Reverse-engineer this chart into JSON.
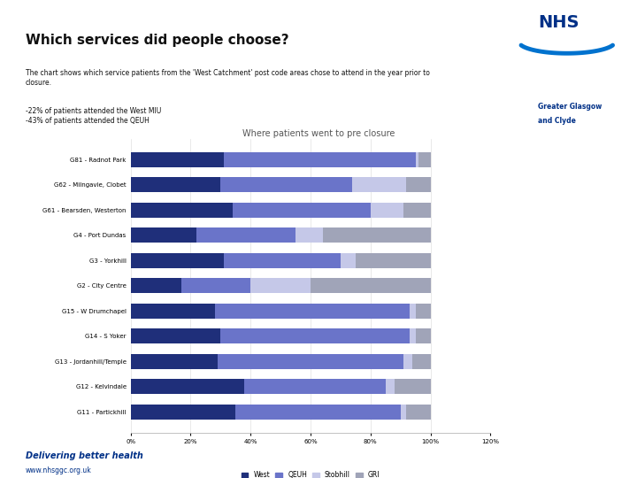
{
  "title": "Which services did people choose?",
  "subtitle": "The chart shows which service patients from the 'West Catchment' post code areas chose to attend in the year prior to\nclosure.",
  "bullets": [
    "-22% of patients attended the West MIU",
    "-43% of patients attended the QEUH"
  ],
  "chart_title": "Where patients went to pre closure",
  "categories": [
    "G81 - Radnot Park",
    "G62 - Milngavie, Clobet",
    "G61 - Bearsden, Westerton",
    "G4 - Port Dundas",
    "G3 - Yorkhill",
    "G2 - City Centre",
    "G15 - W Drumchapel",
    "G14 - S Yoker",
    "G13 - Jordanhill/Temple",
    "G12 - Kelvindale",
    "G11 - Partickhill"
  ],
  "series": {
    "West": [
      31,
      30,
      34,
      22,
      31,
      17,
      28,
      30,
      29,
      38,
      35
    ],
    "QEUH": [
      64,
      44,
      46,
      33,
      39,
      23,
      65,
      63,
      62,
      47,
      55
    ],
    "Stobhill": [
      1,
      18,
      11,
      9,
      5,
      20,
      2,
      2,
      3,
      3,
      2
    ],
    "GRI": [
      4,
      8,
      9,
      36,
      25,
      40,
      5,
      5,
      6,
      12,
      8
    ]
  },
  "colors": {
    "West": "#1f2f7a",
    "QEUH": "#6a74c9",
    "Stobhill": "#c5c8e8",
    "GRI": "#a0a4b8"
  },
  "xlim": [
    0,
    120
  ],
  "xtick_values": [
    0,
    20,
    40,
    60,
    80,
    100,
    120
  ],
  "background_color": "#ffffff",
  "bar_height": 0.6
}
